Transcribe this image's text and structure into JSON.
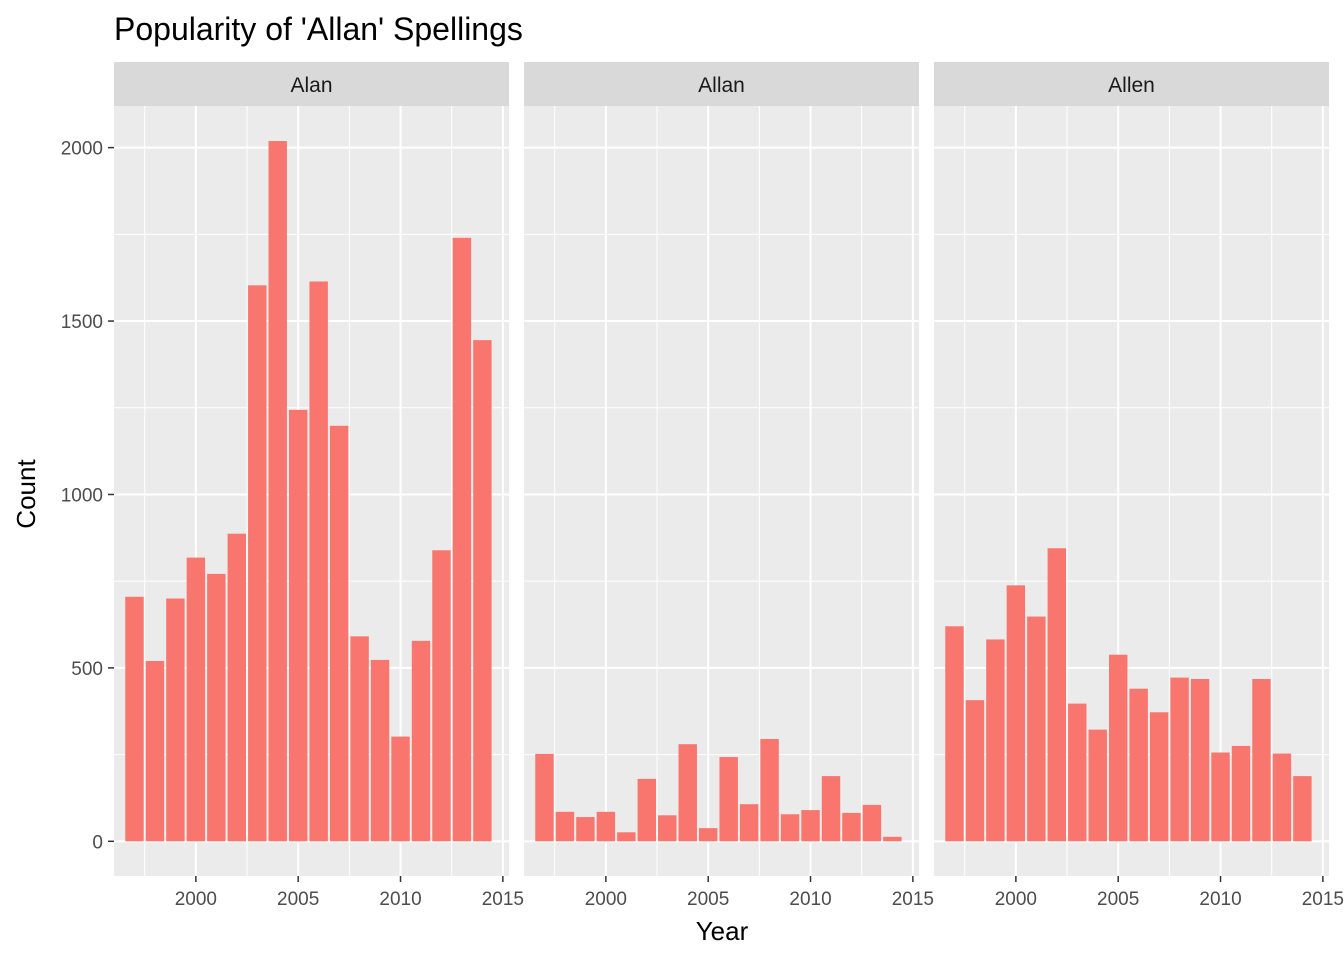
{
  "chart_data": {
    "type": "bar",
    "title": "Popularity of 'Allan' Spellings",
    "xlabel": "Year",
    "ylabel": "Count",
    "x": [
      1997,
      1998,
      1999,
      2000,
      2001,
      2002,
      2003,
      2004,
      2005,
      2006,
      2007,
      2008,
      2009,
      2010,
      2011,
      2012,
      2013,
      2014
    ],
    "xticks": [
      "2000",
      "2005",
      "2010",
      "2015"
    ],
    "yticks": [
      "0",
      "500",
      "1000",
      "1500",
      "2000"
    ],
    "xlim": [
      1996,
      2015.3
    ],
    "ylim": [
      -100,
      2120
    ],
    "grid": true,
    "bar_color": "#F8766D",
    "panel_background": "#EBEBEB",
    "strip_background": "#D9D9D9",
    "facets": [
      {
        "name": "Alan",
        "values": [
          705,
          520,
          700,
          818,
          771,
          887,
          1603,
          2019,
          1244,
          1614,
          1198,
          591,
          523,
          302,
          578,
          839,
          1740,
          1445
        ]
      },
      {
        "name": "Allan",
        "values": [
          252,
          85,
          70,
          85,
          26,
          180,
          75,
          280,
          38,
          243,
          107,
          295,
          78,
          90,
          188,
          82,
          105,
          13
        ]
      },
      {
        "name": "Allen",
        "values": [
          620,
          407,
          582,
          738,
          648,
          845,
          397,
          322,
          538,
          440,
          372,
          472,
          468,
          256,
          275,
          468,
          253,
          188
        ]
      }
    ]
  }
}
